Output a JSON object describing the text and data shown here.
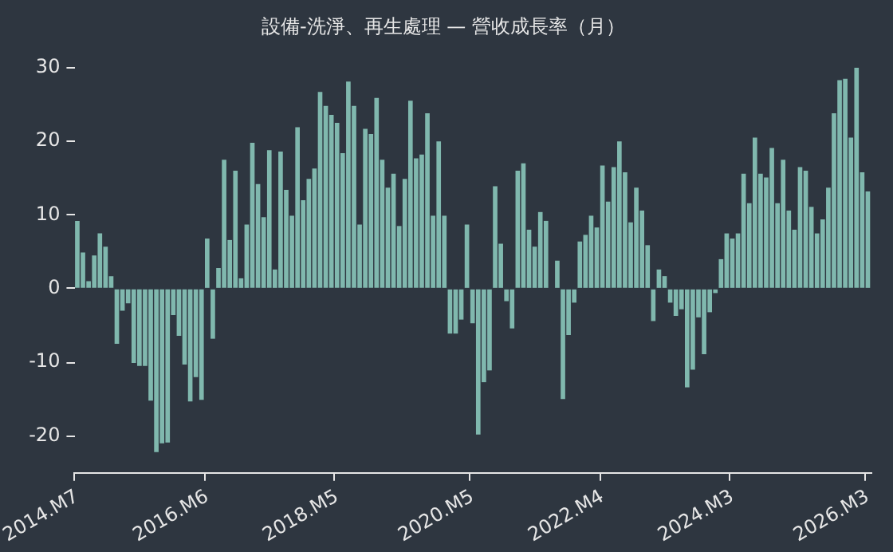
{
  "chart_data": {
    "type": "bar",
    "title": "設備-洗淨、再生處理 — 營收成長率（月）",
    "categories": [
      "2014.M7",
      null,
      null,
      null,
      null,
      null,
      null,
      null,
      null,
      null,
      null,
      null,
      null,
      null,
      null,
      null,
      null,
      null,
      null,
      null,
      null,
      null,
      null,
      "2016.M6",
      null,
      null,
      null,
      null,
      null,
      null,
      null,
      null,
      null,
      null,
      null,
      null,
      null,
      null,
      null,
      null,
      null,
      null,
      null,
      null,
      null,
      null,
      "2018.M5",
      null,
      null,
      null,
      null,
      null,
      null,
      null,
      null,
      null,
      null,
      null,
      null,
      null,
      null,
      null,
      null,
      null,
      null,
      null,
      null,
      null,
      null,
      null,
      "2020.M5",
      null,
      null,
      null,
      null,
      null,
      null,
      null,
      null,
      null,
      null,
      null,
      null,
      null,
      null,
      null,
      null,
      null,
      null,
      null,
      null,
      null,
      null,
      "2022.M4",
      null,
      null,
      null,
      null,
      null,
      null,
      null,
      null,
      null,
      null,
      null,
      null,
      null,
      null,
      null,
      null,
      null,
      null,
      null,
      null,
      null,
      null,
      "2024.M3",
      null,
      null,
      null,
      null,
      null,
      null,
      null,
      null,
      null,
      null,
      null,
      null,
      null,
      null,
      null,
      null,
      null,
      null,
      null,
      null,
      null,
      null,
      null,
      "2026.M3"
    ],
    "values": [
      9.2,
      4.9,
      1,
      4.5,
      7.5,
      5.7,
      1.7,
      -7.5,
      -3,
      -2,
      -10.1,
      -10.5,
      -10.5,
      -15.2,
      -22.2,
      -21,
      -20.9,
      -3.6,
      -6.4,
      -10.3,
      -15.3,
      -12,
      -15.1,
      6.8,
      -6.8,
      2.8,
      17.5,
      6.6,
      16,
      1.4,
      8.7,
      19.8,
      14.2,
      9.7,
      18.8,
      2.6,
      18.6,
      13.4,
      9.9,
      21.9,
      12,
      14.9,
      16.3,
      26.7,
      24.8,
      23.6,
      22.5,
      18.4,
      28.1,
      24.8,
      8.7,
      21.7,
      21,
      25.9,
      17.5,
      13.7,
      15.6,
      8.5,
      14.9,
      25.5,
      17.7,
      18.2,
      23.8,
      9.9,
      20,
      9.9,
      -6.1,
      -6.1,
      -4.2,
      8.7,
      -4.7,
      -19.8,
      -12.7,
      -11.1,
      13.9,
      6.1,
      -1.7,
      -5.4,
      16,
      17,
      8,
      5.7,
      10.4,
      9.2,
      0,
      3.8,
      -15,
      -6.3,
      -1.9,
      6.4,
      7.3,
      9.9,
      8.3,
      16.7,
      11.8,
      16.5,
      20,
      15.8,
      9,
      13.7,
      10.6,
      5.9,
      -4.4,
      2.6,
      1.7,
      -1.9,
      -3.7,
      -2.8,
      -13.4,
      -11,
      -3.9,
      -8.9,
      -3.2,
      -0.6,
      4,
      7.5,
      6.8,
      7.5,
      15.6,
      11.6,
      20.5,
      15.6,
      15.1,
      19.1,
      11.6,
      17.5,
      10.6,
      8,
      16.5,
      16,
      11.1,
      7.5,
      9.4,
      13.7,
      23.8,
      28.3,
      28.5,
      20.5,
      30,
      15.8,
      13.2
    ],
    "color": "#80b8ae",
    "ylim": [
      -25,
      30
    ],
    "yticks": [
      -20,
      -10,
      0,
      10,
      20,
      30
    ]
  }
}
